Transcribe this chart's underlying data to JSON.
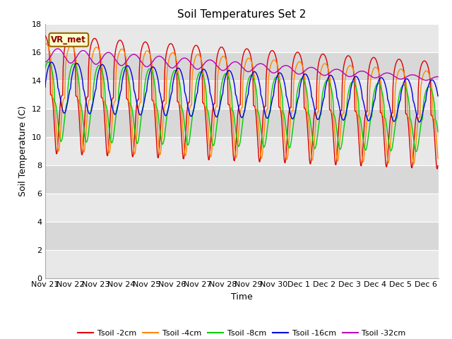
{
  "title": "Soil Temperatures Set 2",
  "xlabel": "Time",
  "ylabel": "Soil Temperature (C)",
  "ylim": [
    0,
    18
  ],
  "yticks": [
    0,
    2,
    4,
    6,
    8,
    10,
    12,
    14,
    16,
    18
  ],
  "x_tick_labels": [
    "Nov 21",
    "Nov 22",
    "Nov 23",
    "Nov 24",
    "Nov 25",
    "Nov 26",
    "Nov 27",
    "Nov 28",
    "Nov 29",
    "Nov 30",
    "Dec 1",
    "Dec 2",
    "Dec 3",
    "Dec 4",
    "Dec 5",
    "Dec 6"
  ],
  "colors": {
    "Tsoil -2cm": "#dd0000",
    "Tsoil -4cm": "#ff8800",
    "Tsoil -8cm": "#00cc00",
    "Tsoil -16cm": "#0000dd",
    "Tsoil -32cm": "#bb00bb"
  },
  "annotation_text": "VR_met",
  "annotation_bg": "#ffffcc",
  "annotation_border": "#996600",
  "plot_bg_light": "#e8e8e8",
  "plot_bg_dark": "#d0d0d0",
  "legend_labels": [
    "Tsoil -2cm",
    "Tsoil -4cm",
    "Tsoil -8cm",
    "Tsoil -16cm",
    "Tsoil -32cm"
  ],
  "n_days": 15.5,
  "period": 1.0
}
